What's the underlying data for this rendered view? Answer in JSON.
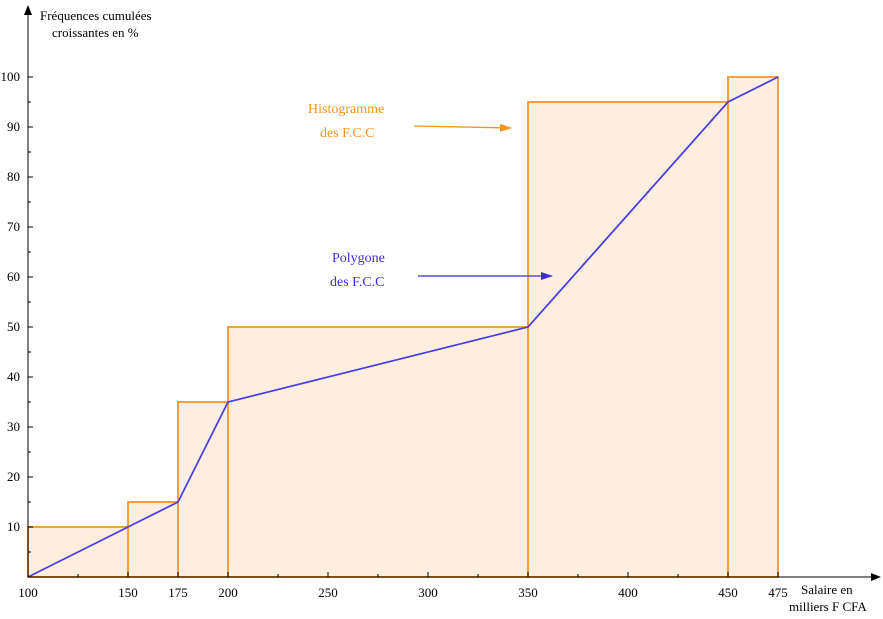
{
  "chart_data": {
    "type": "bar",
    "ylabel_line1": "Fréquences cumulées",
    "ylabel_line2": "croissantes en %",
    "xlabel_line1": "Salaire en",
    "xlabel_line2": "milliers F CFA",
    "xlim": [
      100,
      475
    ],
    "ylim": [
      0,
      100
    ],
    "x_ticks": [
      100,
      150,
      175,
      200,
      250,
      300,
      350,
      400,
      450,
      475
    ],
    "y_ticks": [
      10,
      20,
      30,
      40,
      50,
      60,
      70,
      80,
      90,
      100
    ],
    "histogram": {
      "bins": [
        {
          "from": 100,
          "to": 150,
          "value": 10
        },
        {
          "from": 150,
          "to": 175,
          "value": 15
        },
        {
          "from": 175,
          "to": 200,
          "value": 35
        },
        {
          "from": 200,
          "to": 350,
          "value": 50
        },
        {
          "from": 350,
          "to": 450,
          "value": 95
        },
        {
          "from": 450,
          "to": 475,
          "value": 100
        }
      ],
      "color": "#f4a040",
      "fill": "#fdeee0"
    },
    "polygon": {
      "points": [
        [
          100,
          0
        ],
        [
          150,
          10
        ],
        [
          175,
          15
        ],
        [
          200,
          35
        ],
        [
          350,
          50
        ],
        [
          450,
          95
        ],
        [
          475,
          100
        ]
      ],
      "color": "#4b3fe0"
    },
    "annotations": [
      {
        "line1": "Histogramme",
        "line2": "des F.C.C",
        "color": "#f7941d"
      },
      {
        "line1": "Polygone",
        "line2": "des F.C.C",
        "color": "#3a2fd8"
      }
    ]
  }
}
